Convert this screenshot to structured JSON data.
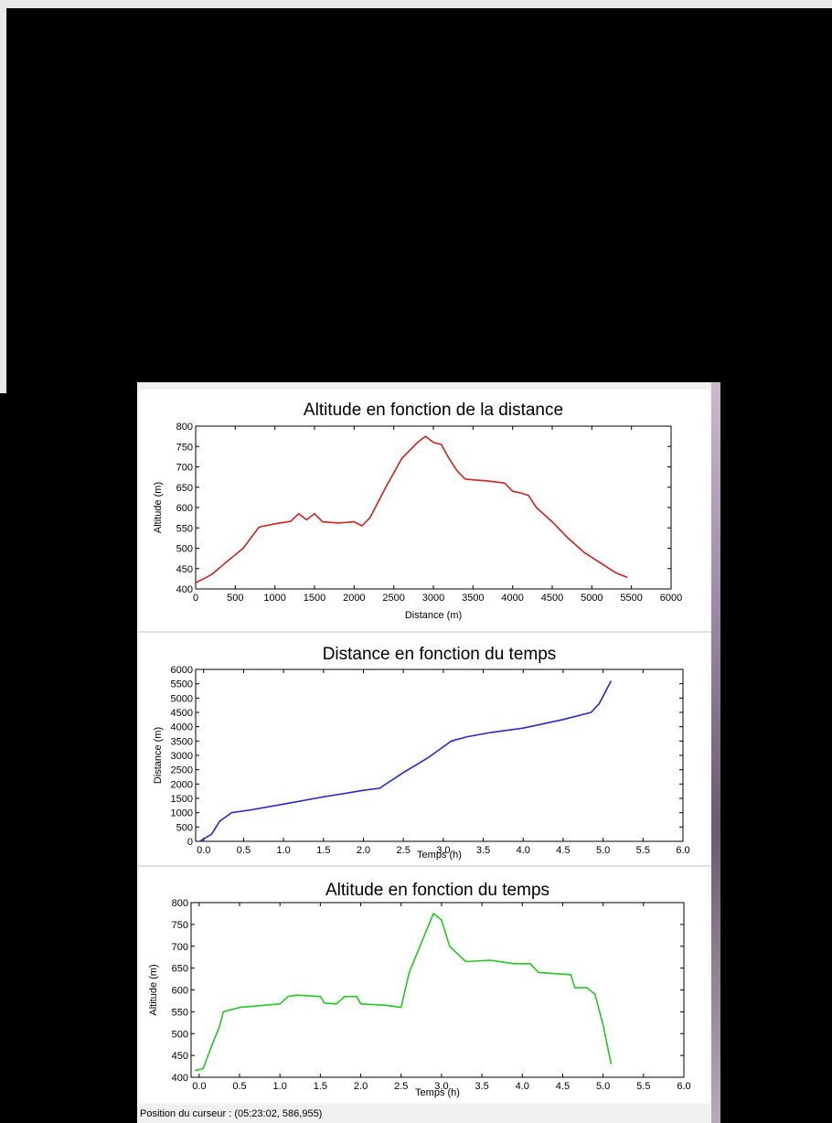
{
  "status_bar": {
    "cursor_text": "Position du curseur : (05:23:02, 586,955)"
  },
  "chart_data": [
    {
      "type": "line",
      "title": "Altitude en fonction de la distance",
      "xlabel": "Distance (m)",
      "ylabel": "Altitude (m)",
      "xlim": [
        0,
        6000
      ],
      "ylim": [
        400,
        800
      ],
      "xticks": [
        "0",
        "500",
        "1000",
        "1500",
        "2000",
        "2500",
        "3000",
        "3500",
        "4000",
        "4500",
        "5000",
        "5500",
        "6000"
      ],
      "yticks": [
        "400",
        "450",
        "500",
        "550",
        "600",
        "650",
        "700",
        "750",
        "800"
      ],
      "color": "#d42020",
      "grid": false,
      "series": [
        {
          "x": [
            0,
            200,
            400,
            600,
            800,
            1000,
            1200,
            1300,
            1400,
            1500,
            1600,
            1800,
            2000,
            2100,
            2200,
            2400,
            2600,
            2800,
            2900,
            3000,
            3100,
            3200,
            3300,
            3400,
            3500,
            3700,
            3900,
            4000,
            4100,
            4200,
            4300,
            4500,
            4700,
            4900,
            5100,
            5300,
            5450
          ],
          "y": [
            415,
            435,
            468,
            500,
            552,
            560,
            566,
            585,
            570,
            585,
            565,
            562,
            565,
            555,
            575,
            650,
            720,
            760,
            775,
            760,
            755,
            720,
            690,
            670,
            668,
            665,
            660,
            640,
            636,
            630,
            600,
            565,
            525,
            490,
            465,
            440,
            428
          ]
        }
      ]
    },
    {
      "type": "line",
      "title": "Distance en fonction du temps",
      "xlabel": "Temps (h)",
      "ylabel": "Distance (m)",
      "xlim": [
        -0.1,
        6.0
      ],
      "ylim": [
        0,
        6000
      ],
      "xticks": [
        "0.0",
        "0.5",
        "1.0",
        "1.5",
        "2.0",
        "2.5",
        "3.0",
        "3.5",
        "4.0",
        "4.5",
        "5.0",
        "5.5",
        "6.0"
      ],
      "yticks": [
        "0",
        "500",
        "1000",
        "1500",
        "2000",
        "2500",
        "3000",
        "3500",
        "4000",
        "4500",
        "5000",
        "5500",
        "6000"
      ],
      "color": "#2828c8",
      "grid": false,
      "series": [
        {
          "x": [
            -0.05,
            0.1,
            0.2,
            0.35,
            0.6,
            1.0,
            1.5,
            2.0,
            2.2,
            2.5,
            2.8,
            3.0,
            3.1,
            3.3,
            3.6,
            4.0,
            4.5,
            4.85,
            4.95,
            5.1
          ],
          "y": [
            0,
            250,
            700,
            1000,
            1100,
            1300,
            1550,
            1780,
            1850,
            2400,
            2900,
            3300,
            3500,
            3650,
            3800,
            3950,
            4250,
            4500,
            4800,
            5600
          ]
        }
      ]
    },
    {
      "type": "line",
      "title": "Altitude en fonction du temps",
      "xlabel": "Temps (h)",
      "ylabel": "Altitude (m)",
      "xlim": [
        -0.1,
        6.0
      ],
      "ylim": [
        400,
        800
      ],
      "xticks": [
        "0.0",
        "0.5",
        "1.0",
        "1.5",
        "2.0",
        "2.5",
        "3.0",
        "3.5",
        "4.0",
        "4.5",
        "5.0",
        "5.5",
        "6.0"
      ],
      "yticks": [
        "400",
        "450",
        "500",
        "550",
        "600",
        "650",
        "700",
        "750",
        "800"
      ],
      "color": "#22c822",
      "grid": false,
      "series": [
        {
          "x": [
            -0.05,
            0.05,
            0.15,
            0.25,
            0.3,
            0.5,
            1.0,
            1.1,
            1.2,
            1.5,
            1.55,
            1.7,
            1.8,
            1.95,
            2.0,
            2.3,
            2.5,
            2.6,
            2.8,
            2.9,
            3.0,
            3.1,
            3.3,
            3.6,
            3.9,
            4.1,
            4.2,
            4.6,
            4.65,
            4.8,
            4.9,
            5.0,
            5.1
          ],
          "y": [
            415,
            420,
            470,
            515,
            550,
            560,
            568,
            585,
            588,
            585,
            570,
            568,
            585,
            585,
            568,
            565,
            560,
            640,
            730,
            775,
            760,
            700,
            665,
            668,
            660,
            660,
            640,
            635,
            605,
            605,
            590,
            520,
            430
          ]
        }
      ]
    }
  ]
}
